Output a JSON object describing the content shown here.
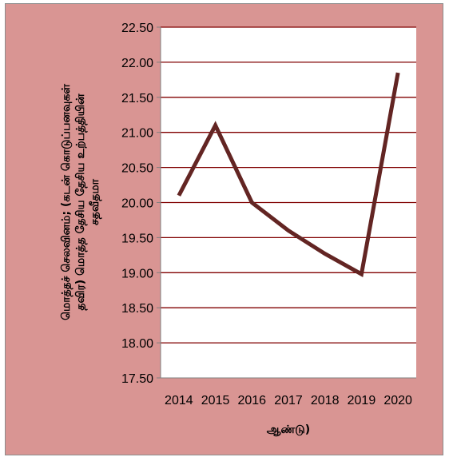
{
  "colors": {
    "background": "#d99593",
    "plot_area": "#ffffff",
    "gridline": "#800000",
    "series_line": "#632523",
    "axis_line": "#7f7f7f"
  },
  "chart_data": {
    "type": "line",
    "title": "",
    "xlabel": "ஆண்டு)",
    "ylabel_lines": [
      "மொத்தச் செலவினம்; (கடன் கொடுப்பனவுகள்",
      "தவிர) மொத்த தேசிய தேசிய உற்பத்தியின்",
      "சதவீதமா"
    ],
    "categories": [
      "2014",
      "2015",
      "2016",
      "2017",
      "2018",
      "2019",
      "2020"
    ],
    "series": [
      {
        "values": [
          20.1,
          21.1,
          20.0,
          19.6,
          19.27,
          18.98,
          21.85
        ]
      }
    ],
    "ylim": [
      17.5,
      22.5
    ],
    "yticks": [
      "17.50",
      "18.00",
      "18.50",
      "19.00",
      "19.50",
      "20.00",
      "20.50",
      "21.00",
      "21.50",
      "22.00",
      "22.50"
    ],
    "grid": true,
    "legend": "none"
  }
}
